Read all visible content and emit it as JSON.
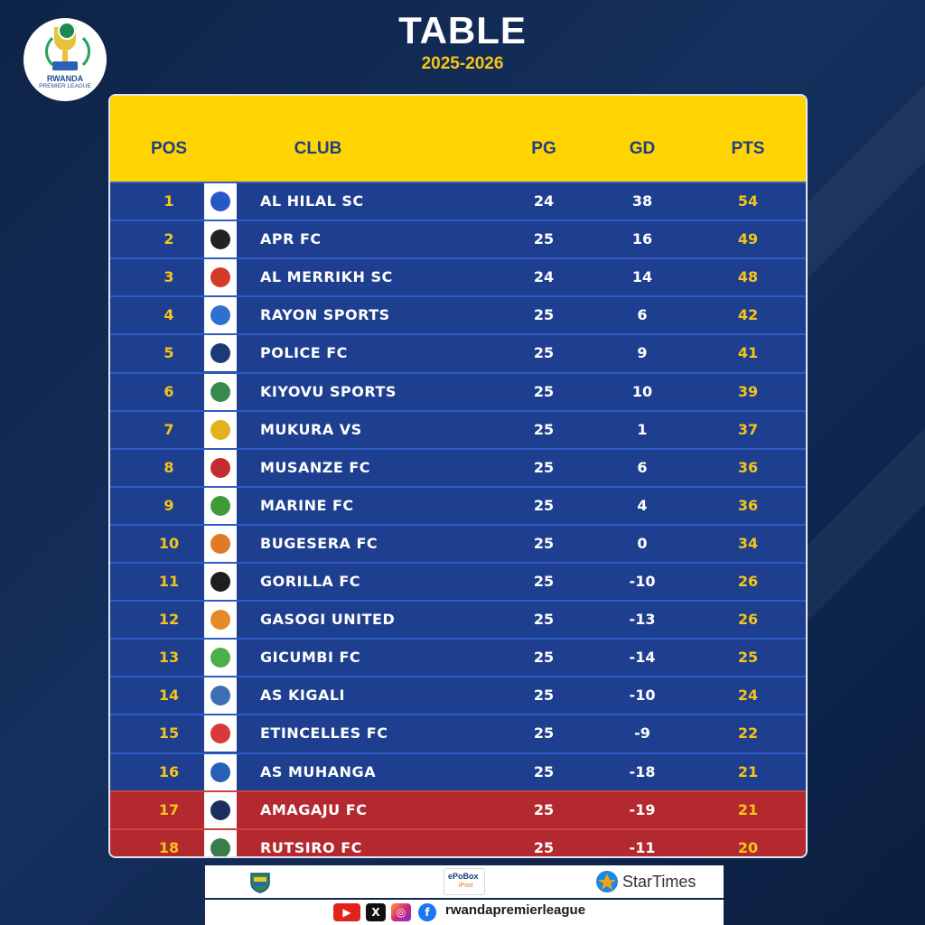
{
  "header": {
    "logo_line1": "RWANDA",
    "logo_line2": "PREMIER LEAGUE",
    "title": "TABLE",
    "season": "2025-2026"
  },
  "table": {
    "columns": {
      "pos": "POS",
      "club": "CLUB",
      "pg": "PG",
      "gd": "GD",
      "pts": "PTS"
    },
    "rows": [
      {
        "pos": "1",
        "club": "AL HILAL SC",
        "pg": "24",
        "gd": "38",
        "pts": "54",
        "crest": "#2a57c7"
      },
      {
        "pos": "2",
        "club": "APR FC",
        "pg": "25",
        "gd": "16",
        "pts": "49",
        "crest": "#222222"
      },
      {
        "pos": "3",
        "club": "AL MERRIKH SC",
        "pg": "24",
        "gd": "14",
        "pts": "48",
        "crest": "#d43a2a"
      },
      {
        "pos": "4",
        "club": "RAYON SPORTS",
        "pg": "25",
        "gd": "6",
        "pts": "42",
        "crest": "#2f6fd0"
      },
      {
        "pos": "5",
        "club": "POLICE FC",
        "pg": "25",
        "gd": "9",
        "pts": "41",
        "crest": "#1c3a78"
      },
      {
        "pos": "6",
        "club": "KIYOVU SPORTS",
        "pg": "25",
        "gd": "10",
        "pts": "39",
        "crest": "#3b8a4d"
      },
      {
        "pos": "7",
        "club": "MUKURA VS",
        "pg": "25",
        "gd": "1",
        "pts": "37",
        "crest": "#e1b21f"
      },
      {
        "pos": "8",
        "club": "MUSANZE FC",
        "pg": "25",
        "gd": "6",
        "pts": "36",
        "crest": "#c42d2d"
      },
      {
        "pos": "9",
        "club": "MARINE FC",
        "pg": "25",
        "gd": "4",
        "pts": "36",
        "crest": "#3f9b3a"
      },
      {
        "pos": "10",
        "club": "BUGESERA FC",
        "pg": "25",
        "gd": "0",
        "pts": "34",
        "crest": "#e07a26"
      },
      {
        "pos": "11",
        "club": "GORILLA FC",
        "pg": "25",
        "gd": "-10",
        "pts": "26",
        "crest": "#1e1e1e"
      },
      {
        "pos": "12",
        "club": "GASOGI UNITED",
        "pg": "25",
        "gd": "-13",
        "pts": "26",
        "crest": "#e58a2a"
      },
      {
        "pos": "13",
        "club": "GICUMBI FC",
        "pg": "25",
        "gd": "-14",
        "pts": "25",
        "crest": "#4cae4c"
      },
      {
        "pos": "14",
        "club": "AS KIGALI",
        "pg": "25",
        "gd": "-10",
        "pts": "24",
        "crest": "#3e6fb0"
      },
      {
        "pos": "15",
        "club": "ETINCELLES FC",
        "pg": "25",
        "gd": "-9",
        "pts": "22",
        "crest": "#d63a3a"
      },
      {
        "pos": "16",
        "club": "AS MUHANGA",
        "pg": "25",
        "gd": "-18",
        "pts": "21",
        "crest": "#2a5fb8"
      },
      {
        "pos": "17",
        "club": "AMAGAJU FC",
        "pg": "25",
        "gd": "-19",
        "pts": "21",
        "crest": "#1d2f5e"
      },
      {
        "pos": "18",
        "club": "RUTSIRO FC",
        "pg": "25",
        "gd": "-11",
        "pts": "20",
        "crest": "#3a7d4a"
      }
    ]
  },
  "sponsors": {
    "epobox_line1": "ePoBox",
    "epobox_line2": "iPost",
    "startimes": "StarTimes"
  },
  "social": {
    "handle": "rwandapremierleague",
    "icons": [
      "youtube-icon",
      "x-icon",
      "instagram-icon",
      "facebook-icon"
    ]
  },
  "colors": {
    "header_yellow": "#ffd400",
    "row_blue": "#1e3f8f",
    "relegation_red": "#b3292f",
    "accent_yellow": "#f5c518"
  }
}
